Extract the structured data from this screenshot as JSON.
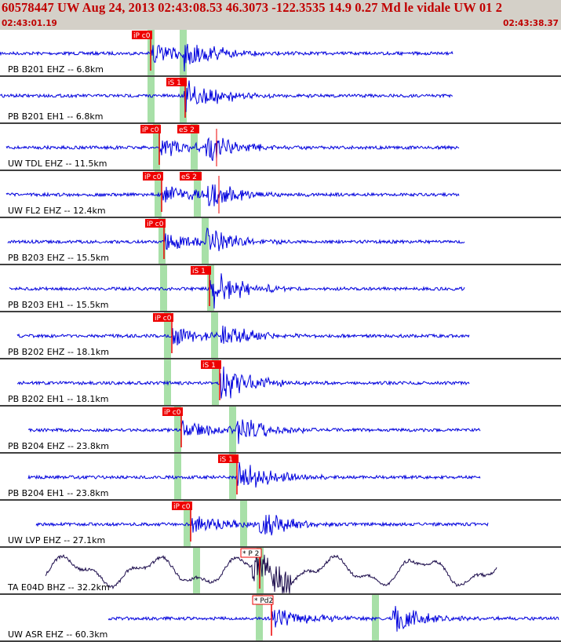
{
  "header": {
    "title": "60578447 UW Aug 24, 2013 02:43:08.53    46.3073 -122.3535 14.9 0.27 Md le vidale UW 01   2",
    "start_time": "02:43:01.19",
    "end_time": "02:43:38.37"
  },
  "colors": {
    "header_bg": "#d4d0c8",
    "header_text": "#c00000",
    "trace": "#0000dd",
    "trace_dark": "#1a0a4a",
    "pick": "#ee0000",
    "window": "#a8e0a8",
    "separator": "#000000"
  },
  "traces": [
    {
      "label": "PB B201 EHZ -- 6.8km",
      "pick": "iP c0",
      "pick_text": "white"
    },
    {
      "label": "PB B201 EH1 -- 6.8km",
      "pick": "iS 1",
      "pick_text": "white"
    },
    {
      "label": "UW TDL EHZ -- 11.5km",
      "pick": "iP c0",
      "pick2": "eS 2",
      "pick_text": "white"
    },
    {
      "label": "UW FL2 EHZ -- 12.4km",
      "pick": "iP c0",
      "pick2": "eS 2",
      "pick_text": "white"
    },
    {
      "label": "PB B203 EHZ -- 15.5km",
      "pick": "iP c0",
      "pick_text": "white"
    },
    {
      "label": "PB B203 EH1 -- 15.5km",
      "pick": "iS 1",
      "pick_text": "white"
    },
    {
      "label": "PB B202 EHZ -- 18.1km",
      "pick": "iP c0",
      "pick_text": "white"
    },
    {
      "label": "PB B202 EH1 -- 18.1km",
      "pick": "iS 1",
      "pick_text": "white"
    },
    {
      "label": "PB B204 EHZ -- 23.8km",
      "pick": "iP c0",
      "pick_text": "white"
    },
    {
      "label": "PB B204 EH1 -- 23.8km",
      "pick": "iS 1",
      "pick_text": "white"
    },
    {
      "label": "UW LVP EHZ -- 27.1km",
      "pick": "iP c0",
      "pick_text": "white"
    },
    {
      "label": "TA E04D BHZ -- 32.2km",
      "pick": "* P 2",
      "pick_text": "black"
    },
    {
      "label": "UW ASR EHZ -- 60.3km",
      "pick": "* Pd2",
      "pick_text": "black"
    }
  ]
}
